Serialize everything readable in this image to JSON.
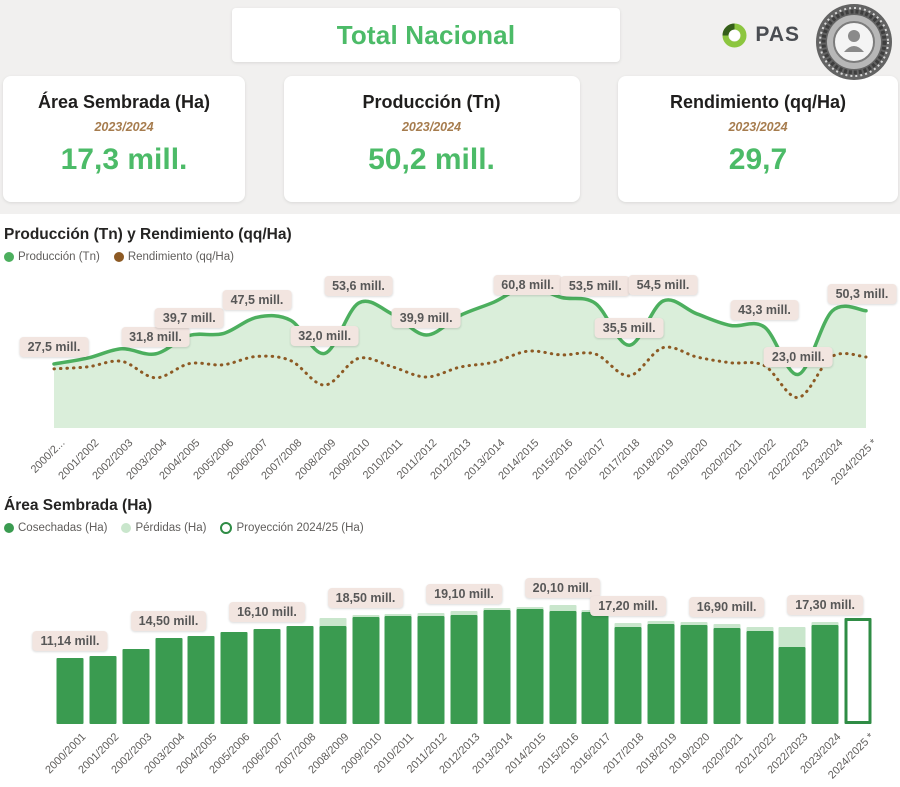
{
  "header": {
    "title": "Total Nacional",
    "pas_label": "PAS"
  },
  "kpis": [
    {
      "title": "Área Sembrada (Ha)",
      "season": "2023/2024",
      "value": "17,3 mill."
    },
    {
      "title": "Producción (Tn)",
      "season": "2023/2024",
      "value": "50,2 mill."
    },
    {
      "title": "Rendimiento (qq/Ha)",
      "season": "2023/2024",
      "value": "29,7"
    }
  ],
  "colors": {
    "accent_green": "#4cbb68",
    "line_green": "#4caf5e",
    "area_green": "#daeeda",
    "bar_green": "#3a9b50",
    "bar_light_green": "#c9e6cc",
    "brown": "#8d5a24",
    "season_brown": "#a67c4e",
    "pill_bg": "#f2e5e0",
    "background_gray": "#f1f0ef",
    "pas_green": "#8cc63f"
  },
  "chart_data": [
    {
      "type": "area",
      "title": "Producción (Tn) y Rendimiento (qq/Ha)",
      "categories": [
        "2000/2...",
        "2001/2002",
        "2002/2003",
        "2003/2004",
        "2004/2005",
        "2005/2006",
        "2006/2007",
        "2007/2008",
        "2008/2009",
        "2009/2010",
        "2010/2011",
        "2011/2012",
        "2012/2013",
        "2013/2014",
        "2014/2015",
        "2015/2016",
        "2016/2017",
        "2017/2018",
        "2018/2019",
        "2019/2020",
        "2020/2021",
        "2021/2022",
        "2022/2023",
        "2023/2024",
        "2024/2025 *"
      ],
      "series": [
        {
          "name": "Producción (Tn)",
          "color": "#4caf5e",
          "style": "area-line",
          "values": [
            27.5,
            30.0,
            34.0,
            31.8,
            39.7,
            40.5,
            47.5,
            46.2,
            32.0,
            53.6,
            48.9,
            39.9,
            48.3,
            54.0,
            60.8,
            56.0,
            53.5,
            35.5,
            54.5,
            49.0,
            44.0,
            43.3,
            23.0,
            50.2,
            50.3
          ]
        },
        {
          "name": "Rendimiento (qq/Ha)",
          "color": "#8d5a24",
          "style": "dotted",
          "values": [
            25.4,
            26.1,
            28.0,
            22.3,
            27.2,
            26.8,
            29.7,
            28.2,
            19.8,
            29.0,
            26.1,
            22.6,
            26.0,
            27.7,
            31.5,
            30.2,
            30.5,
            23.0,
            32.7,
            29.5,
            27.5,
            26.5,
            15.5,
            29.7,
            29.5
          ]
        }
      ],
      "labels": [
        {
          "index": 0,
          "text": "27,5 mill."
        },
        {
          "index": 3,
          "text": "31,8 mill."
        },
        {
          "index": 4,
          "text": "39,7 mill."
        },
        {
          "index": 6,
          "text": "47,5 mill."
        },
        {
          "index": 8,
          "text": "32,0 mill."
        },
        {
          "index": 9,
          "text": "53,6 mill."
        },
        {
          "index": 11,
          "text": "39,9 mill."
        },
        {
          "index": 14,
          "text": "60,8 mill."
        },
        {
          "index": 16,
          "text": "53,5 mill."
        },
        {
          "index": 17,
          "text": "35,5 mill."
        },
        {
          "index": 18,
          "text": "54,5 mill."
        },
        {
          "index": 21,
          "text": "43,3 mill."
        },
        {
          "index": 22,
          "text": "23,0 mill."
        },
        {
          "index": 24,
          "text": "50,3 mill."
        }
      ],
      "ylim": [
        0,
        65
      ],
      "grid": false,
      "legend_position": "top-left"
    },
    {
      "type": "bar",
      "title": "Área Sembrada (Ha)",
      "categories": [
        "2000/2001",
        "2001/2002",
        "2002/2003",
        "2003/2004",
        "2004/2005",
        "2005/2006",
        "2006/2007",
        "2007/2008",
        "2008/2009",
        "2009/2010",
        "2010/2011",
        "2011/2012",
        "2012/2013",
        "2013/2014",
        "2014/2015",
        "2015/2016",
        "2016/2017",
        "2017/2018",
        "2018/2019",
        "2019/2020",
        "2020/2021",
        "2021/2022",
        "2022/2023",
        "2023/2024",
        "2024/2025 *"
      ],
      "series": [
        {
          "name": "Cosechadas (Ha)",
          "color": "#3a9b50",
          "style": "solid",
          "values": [
            11.14,
            11.6,
            12.8,
            14.5,
            14.9,
            15.6,
            16.1,
            16.6,
            16.6,
            18.1,
            18.3,
            18.3,
            18.4,
            19.4,
            19.5,
            19.1,
            18.9,
            16.4,
            16.9,
            16.8,
            16.3,
            15.8,
            13.0,
            16.8,
            0
          ]
        },
        {
          "name": "Pérdidas (Ha)",
          "color": "#c9e6cc",
          "style": "solid",
          "values": [
            0,
            0,
            0,
            0,
            0,
            0,
            0,
            0,
            1.4,
            0.4,
            0.4,
            0.5,
            0.7,
            0.3,
            0.3,
            1.0,
            0.4,
            0.8,
            0.5,
            0.5,
            0.6,
            0.7,
            3.4,
            0.5,
            0
          ]
        },
        {
          "name": "Proyección 2024/25 (Ha)",
          "color": "#2f8c45",
          "style": "hollow",
          "values": [
            0,
            0,
            0,
            0,
            0,
            0,
            0,
            0,
            0,
            0,
            0,
            0,
            0,
            0,
            0,
            0,
            0,
            0,
            0,
            0,
            0,
            0,
            0,
            0,
            18.0
          ]
        }
      ],
      "labels": [
        {
          "index": 0,
          "text": "11,14 mill."
        },
        {
          "index": 3,
          "text": "14,50 mill."
        },
        {
          "index": 6,
          "text": "16,10 mill."
        },
        {
          "index": 9,
          "text": "18,50 mill."
        },
        {
          "index": 12,
          "text": "19,10 mill."
        },
        {
          "index": 15,
          "text": "20,10 mill."
        },
        {
          "index": 17,
          "text": "17,20 mill."
        },
        {
          "index": 20,
          "text": "16,90 mill."
        },
        {
          "index": 23,
          "text": "17,30 mill."
        }
      ],
      "ylim": [
        0,
        22
      ],
      "grid": false,
      "legend_position": "top-left"
    }
  ]
}
